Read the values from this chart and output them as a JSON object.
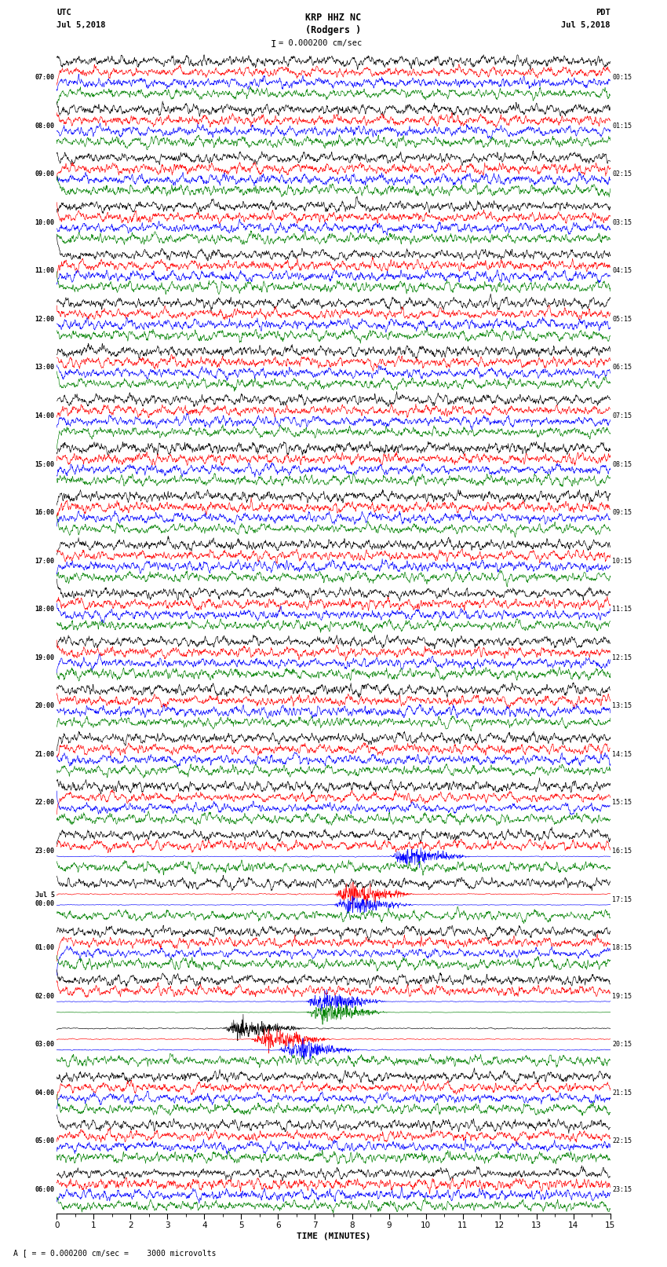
{
  "title_line1": "KRP HHZ NC",
  "title_line2": "(Rodgers )",
  "scale_label": "= 0.000200 cm/sec",
  "bottom_label": "= 0.000200 cm/sec =    3000 microvolts",
  "xlabel": "TIME (MINUTES)",
  "left_times": [
    "07:00",
    "08:00",
    "09:00",
    "10:00",
    "11:00",
    "12:00",
    "13:00",
    "14:00",
    "15:00",
    "16:00",
    "17:00",
    "18:00",
    "19:00",
    "20:00",
    "21:00",
    "22:00",
    "23:00",
    "Jul 5\n00:00",
    "01:00",
    "02:00",
    "03:00",
    "04:00",
    "05:00",
    "06:00"
  ],
  "right_times": [
    "00:15",
    "01:15",
    "02:15",
    "03:15",
    "04:15",
    "05:15",
    "06:15",
    "07:15",
    "08:15",
    "09:15",
    "10:15",
    "11:15",
    "12:15",
    "13:15",
    "14:15",
    "15:15",
    "16:15",
    "17:15",
    "18:15",
    "19:15",
    "20:15",
    "21:15",
    "22:15",
    "23:15"
  ],
  "n_rows": 24,
  "traces_per_row": 4,
  "colors": [
    "black",
    "red",
    "blue",
    "green"
  ],
  "bg_color": "white",
  "fig_width": 8.5,
  "fig_height": 16.13,
  "dpi": 100,
  "trace_duration_minutes": 15,
  "samples_per_trace": 1800
}
